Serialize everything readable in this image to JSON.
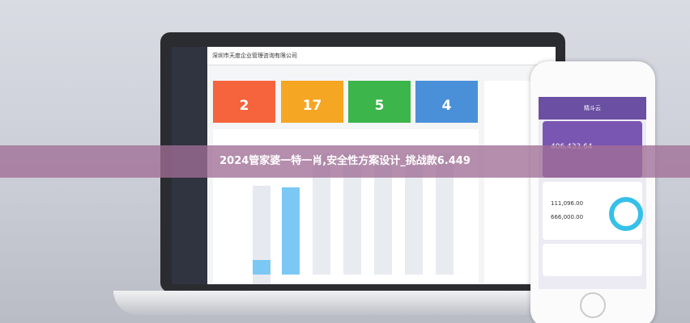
{
  "banner": {
    "title": "2024管家婆一特一肖,安全性方案设计_挑战款6.449"
  },
  "dashboard": {
    "company": "深圳市天度企业管理咨询有限公司",
    "cards": [
      2,
      17,
      5,
      4
    ]
  },
  "phone": {
    "app": "精斗云",
    "total": "406,433.64",
    "stats": [
      "111,096.00",
      "666,000.00"
    ]
  }
}
